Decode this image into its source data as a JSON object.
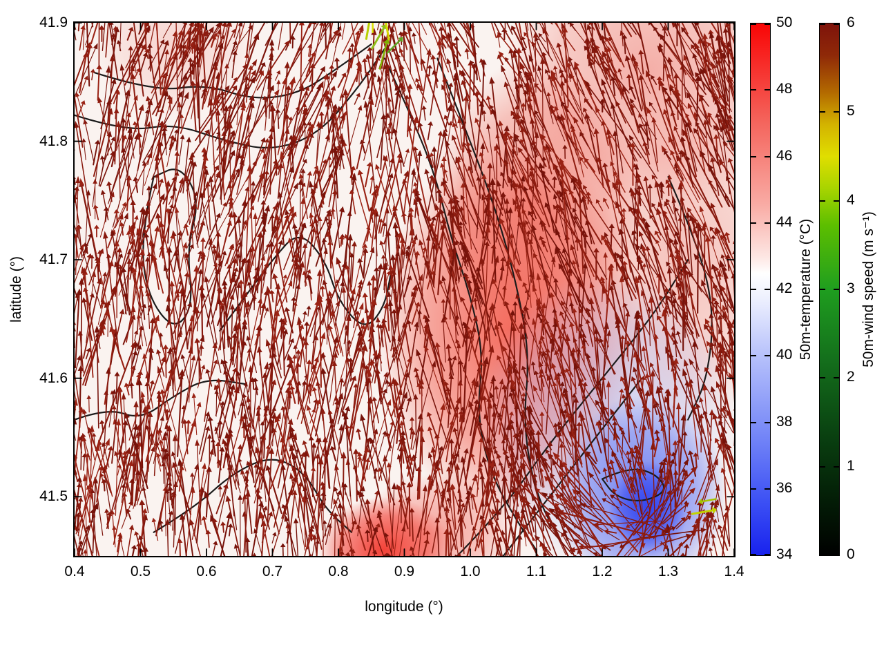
{
  "chart_data": {
    "type": "heatmap",
    "subtype": "vector-field-map-with-contours",
    "title": "",
    "xlabel": "longitude (°)",
    "ylabel": "latitude (°)",
    "xlim": [
      0.4,
      1.4
    ],
    "ylim": [
      41.45,
      41.9
    ],
    "grid": false,
    "x_ticks": [
      {
        "value": 0.4,
        "label": "0.4"
      },
      {
        "value": 0.5,
        "label": "0.5"
      },
      {
        "value": 0.6,
        "label": "0.6"
      },
      {
        "value": 0.7,
        "label": "0.7"
      },
      {
        "value": 0.8,
        "label": "0.8"
      },
      {
        "value": 0.9,
        "label": "0.9"
      },
      {
        "value": 1.0,
        "label": "1.0"
      },
      {
        "value": 1.1,
        "label": "1.1"
      },
      {
        "value": 1.2,
        "label": "1.2"
      },
      {
        "value": 1.3,
        "label": "1.3"
      },
      {
        "value": 1.4,
        "label": "1.4"
      }
    ],
    "y_ticks": [
      {
        "value": 41.5,
        "label": "41.5"
      },
      {
        "value": 41.6,
        "label": "41.6"
      },
      {
        "value": 41.7,
        "label": "41.7"
      },
      {
        "value": 41.8,
        "label": "41.8"
      },
      {
        "value": 41.9,
        "label": "41.9"
      }
    ],
    "colorbars": [
      {
        "id": "temperature",
        "title": "50m-temperature (°C)",
        "min": 34,
        "max": 50,
        "ticks": [
          {
            "value": 34,
            "label": "34"
          },
          {
            "value": 36,
            "label": "36"
          },
          {
            "value": 38,
            "label": "38"
          },
          {
            "value": 40,
            "label": "40"
          },
          {
            "value": 42,
            "label": "42"
          },
          {
            "value": 44,
            "label": "44"
          },
          {
            "value": 46,
            "label": "46"
          },
          {
            "value": 48,
            "label": "48"
          },
          {
            "value": 50,
            "label": "50"
          }
        ],
        "gradient": [
          [
            0.0,
            "#f90505"
          ],
          [
            0.18,
            "#f4625a"
          ],
          [
            0.34,
            "#f9aba4"
          ],
          [
            0.44,
            "#fde7e4"
          ],
          [
            0.47,
            "#ffffff"
          ],
          [
            0.52,
            "#eceffe"
          ],
          [
            0.62,
            "#b9c3fb"
          ],
          [
            0.78,
            "#7284f7"
          ],
          [
            0.9,
            "#3c50f4"
          ],
          [
            1.0,
            "#1822ee"
          ]
        ]
      },
      {
        "id": "wind",
        "title": "50m-wind speed (m s⁻¹)",
        "min": 0,
        "max": 6,
        "ticks": [
          {
            "value": 0,
            "label": "0"
          },
          {
            "value": 1,
            "label": "1"
          },
          {
            "value": 2,
            "label": "2"
          },
          {
            "value": 3,
            "label": "3"
          },
          {
            "value": 4,
            "label": "4"
          },
          {
            "value": 5,
            "label": "5"
          },
          {
            "value": 6,
            "label": "6"
          }
        ],
        "gradient": [
          [
            0.0,
            "#7e130b"
          ],
          [
            0.06,
            "#8f2908"
          ],
          [
            0.13,
            "#b36a00"
          ],
          [
            0.19,
            "#d3b300"
          ],
          [
            0.25,
            "#e0de00"
          ],
          [
            0.31,
            "#a8d400"
          ],
          [
            0.38,
            "#5cbe00"
          ],
          [
            0.5,
            "#1f9e1f"
          ],
          [
            0.63,
            "#14701c"
          ],
          [
            0.78,
            "#093f10"
          ],
          [
            0.9,
            "#031c06"
          ],
          [
            1.0,
            "#000000"
          ]
        ]
      }
    ],
    "background": {
      "base": "#faf3f0",
      "blobs": [
        {
          "lon": 1.06,
          "lat": 41.64,
          "rx": 0.2,
          "ry": 0.16,
          "color": "#f2402f",
          "alpha": 0.75
        },
        {
          "lon": 1.1,
          "lat": 41.75,
          "rx": 0.16,
          "ry": 0.12,
          "color": "#ef5d4f",
          "alpha": 0.6
        },
        {
          "lon": 1.27,
          "lat": 41.86,
          "rx": 0.22,
          "ry": 0.12,
          "color": "#ef6a5f",
          "alpha": 0.5
        },
        {
          "lon": 1.32,
          "lat": 41.7,
          "rx": 0.18,
          "ry": 0.14,
          "color": "#f29288",
          "alpha": 0.5
        },
        {
          "lon": 0.87,
          "lat": 41.455,
          "rx": 0.1,
          "ry": 0.045,
          "color": "#f21d12",
          "alpha": 0.85
        },
        {
          "lon": 0.95,
          "lat": 41.47,
          "rx": 0.12,
          "ry": 0.05,
          "color": "#f2564a",
          "alpha": 0.5
        },
        {
          "lon": 1.21,
          "lat": 41.56,
          "rx": 0.2,
          "ry": 0.13,
          "color": "#aab8f7",
          "alpha": 0.55
        },
        {
          "lon": 1.26,
          "lat": 41.5,
          "rx": 0.13,
          "ry": 0.085,
          "color": "#5f72f2",
          "alpha": 0.85
        },
        {
          "lon": 1.27,
          "lat": 41.49,
          "rx": 0.06,
          "ry": 0.04,
          "color": "#2b3df0",
          "alpha": 0.9
        },
        {
          "lon": 0.55,
          "lat": 41.88,
          "rx": 0.12,
          "ry": 0.06,
          "color": "#f4a9a2",
          "alpha": 0.4
        }
      ]
    },
    "contours": {
      "color": "#1b1b1b",
      "width": 2.2,
      "paths": [
        [
          [
            0.4,
            41.822
          ],
          [
            0.48,
            41.808
          ],
          [
            0.55,
            41.815
          ],
          [
            0.63,
            41.8
          ],
          [
            0.7,
            41.792
          ],
          [
            0.77,
            41.806
          ],
          [
            0.83,
            41.845
          ],
          [
            0.87,
            41.878
          ]
        ],
        [
          [
            0.43,
            41.858
          ],
          [
            0.52,
            41.842
          ],
          [
            0.6,
            41.848
          ],
          [
            0.67,
            41.835
          ],
          [
            0.74,
            41.84
          ],
          [
            0.8,
            41.862
          ],
          [
            0.85,
            41.882
          ]
        ],
        [
          [
            0.87,
            41.87
          ],
          [
            0.92,
            41.81
          ],
          [
            0.95,
            41.765
          ],
          [
            0.97,
            41.72
          ],
          [
            1.0,
            41.67
          ],
          [
            1.02,
            41.62
          ],
          [
            1.01,
            41.57
          ],
          [
            1.03,
            41.52
          ],
          [
            1.07,
            41.48
          ],
          [
            1.1,
            41.455
          ]
        ],
        [
          [
            0.95,
            41.87
          ],
          [
            1.0,
            41.8
          ],
          [
            1.04,
            41.74
          ],
          [
            1.07,
            41.68
          ],
          [
            1.09,
            41.62
          ],
          [
            1.08,
            41.56
          ],
          [
            1.1,
            41.5
          ],
          [
            1.14,
            41.46
          ]
        ],
        [
          [
            0.52,
            41.77
          ],
          [
            0.5,
            41.72
          ],
          [
            0.51,
            41.67
          ],
          [
            0.55,
            41.64
          ],
          [
            0.58,
            41.66
          ],
          [
            0.57,
            41.71
          ],
          [
            0.59,
            41.75
          ],
          [
            0.56,
            41.78
          ],
          [
            0.52,
            41.77
          ]
        ],
        [
          [
            0.62,
            41.64
          ],
          [
            0.66,
            41.67
          ],
          [
            0.7,
            41.7
          ],
          [
            0.74,
            41.725
          ],
          [
            0.78,
            41.7
          ],
          [
            0.8,
            41.665
          ],
          [
            0.84,
            41.64
          ],
          [
            0.87,
            41.66
          ],
          [
            0.88,
            41.69
          ]
        ],
        [
          [
            0.4,
            41.565
          ],
          [
            0.45,
            41.575
          ],
          [
            0.5,
            41.565
          ],
          [
            0.55,
            41.585
          ],
          [
            0.6,
            41.6
          ],
          [
            0.66,
            41.595
          ]
        ],
        [
          [
            0.52,
            41.47
          ],
          [
            0.58,
            41.49
          ],
          [
            0.64,
            41.52
          ],
          [
            0.7,
            41.535
          ],
          [
            0.75,
            41.52
          ],
          [
            0.78,
            41.49
          ],
          [
            0.82,
            41.47
          ]
        ],
        [
          [
            0.98,
            41.45
          ],
          [
            1.05,
            41.49
          ],
          [
            1.12,
            41.545
          ],
          [
            1.2,
            41.6
          ],
          [
            1.28,
            41.655
          ],
          [
            1.33,
            41.7
          ]
        ],
        [
          [
            1.3,
            41.77
          ],
          [
            1.34,
            41.72
          ],
          [
            1.37,
            41.66
          ],
          [
            1.36,
            41.6
          ],
          [
            1.33,
            41.565
          ]
        ],
        [
          [
            1.2,
            41.515
          ],
          [
            1.24,
            41.525
          ],
          [
            1.28,
            41.52
          ],
          [
            1.3,
            41.505
          ],
          [
            1.26,
            41.495
          ],
          [
            1.22,
            41.5
          ],
          [
            1.2,
            41.515
          ]
        ],
        [
          [
            1.05,
            41.45
          ],
          [
            1.12,
            41.5
          ],
          [
            1.19,
            41.55
          ],
          [
            1.26,
            41.6
          ]
        ]
      ]
    },
    "vectors": {
      "count": 3100,
      "seed": 7,
      "colors": [
        "#7d150c",
        "#8e1c10",
        "#9a2214",
        "#76120a",
        "#88190e"
      ],
      "special": [
        {
          "lon": 0.845,
          "lat": 41.895,
          "angle": -80,
          "len": 30,
          "color": "#b8cf00",
          "width": 3
        },
        {
          "lon": 0.86,
          "lat": 41.887,
          "angle": -60,
          "len": 34,
          "color": "#8fbf1a",
          "width": 3
        },
        {
          "lon": 0.874,
          "lat": 41.894,
          "angle": -100,
          "len": 28,
          "color": "#d6d600",
          "width": 3
        },
        {
          "lon": 0.884,
          "lat": 41.88,
          "angle": -45,
          "len": 26,
          "color": "#5da321",
          "width": 2.5
        },
        {
          "lon": 0.868,
          "lat": 41.872,
          "angle": -75,
          "len": 38,
          "color": "#7fb200",
          "width": 2.5
        },
        {
          "lon": 0.852,
          "lat": 41.899,
          "angle": -90,
          "len": 24,
          "color": "#dadf00",
          "width": 2.5
        },
        {
          "lon": 1.352,
          "lat": 41.487,
          "angle": -10,
          "len": 30,
          "color": "#c3d300",
          "width": 3
        },
        {
          "lon": 1.362,
          "lat": 41.497,
          "angle": 170,
          "len": 20,
          "color": "#a5c400",
          "width": 2.5
        }
      ]
    }
  }
}
